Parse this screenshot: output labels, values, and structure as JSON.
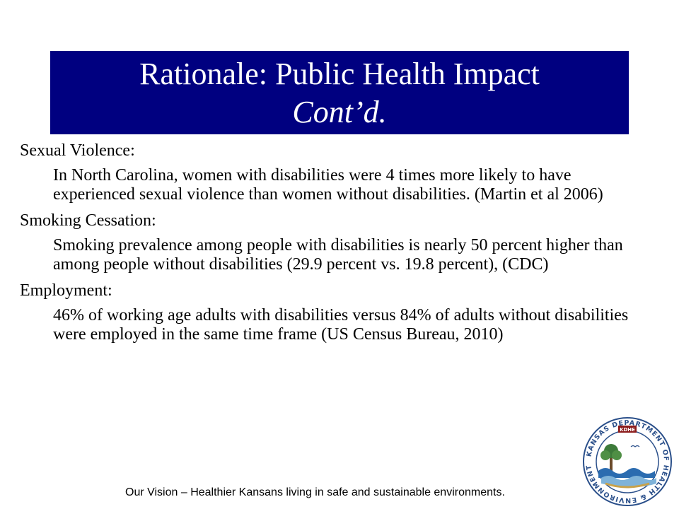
{
  "title": {
    "line1": "Rationale: Public Health Impact",
    "line2": "Cont’d."
  },
  "sections": [
    {
      "heading": "Sexual Violence:",
      "text": "In North Carolina, women with disabilities were 4 times more likely to have experienced sexual violence than women without disabilities. (Martin et al 2006)"
    },
    {
      "heading": "Smoking Cessation:",
      "text": "Smoking prevalence among people with disabilities is nearly 50 percent higher than among people without disabilities (29.9 percent vs. 19.8 percent), (CDC)"
    },
    {
      "heading": "Employment:",
      "text": "46% of working age adults with disabilities versus 84% of adults without disabilities were employed in the same time frame (US Census Bureau, 2010)"
    }
  ],
  "footer": "Our Vision – Healthier Kansans living in safe and sustainable environments.",
  "logo": {
    "ring_text": "KANSAS DEPARTMENT OF HEALTH & ENVIRONMENT",
    "badge": "KDHE",
    "colors": {
      "ring": "#2a4f8a",
      "tree": "#3d7a3a",
      "water": "#2b6cb0",
      "badge": "#8b1a1a"
    }
  },
  "colors": {
    "title_bg": "#000080",
    "title_text": "#ffffff"
  }
}
